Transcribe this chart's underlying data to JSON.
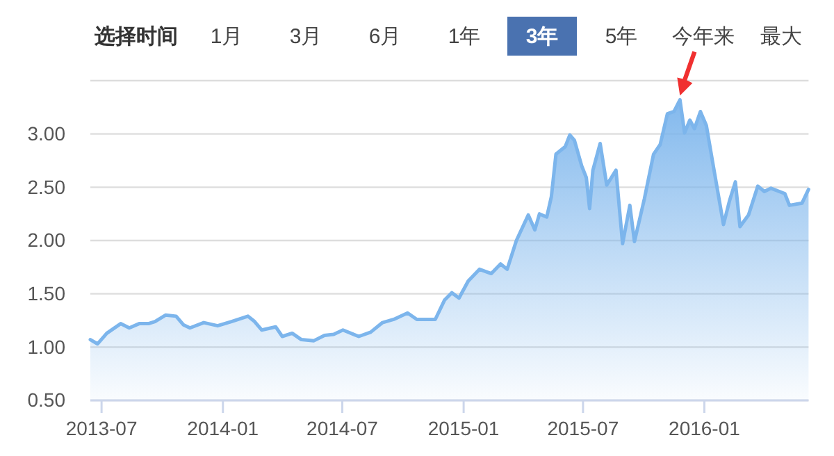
{
  "chart_data": {
    "type": "area",
    "annotations": [
      "选择时间",
      "1月",
      "3月",
      "6月",
      "1年",
      "3年",
      "5年",
      "今年来",
      "最大"
    ],
    "x": [
      "2013-06-14",
      "2013-06-25",
      "2013-07-09",
      "2013-07-30",
      "2013-08-12",
      "2013-08-27",
      "2013-09-10",
      "2013-09-20",
      "2013-10-06",
      "2013-10-22",
      "2013-11-02",
      "2013-11-12",
      "2013-12-03",
      "2013-12-24",
      "2014-01-14",
      "2014-02-08",
      "2014-02-18",
      "2014-03-01",
      "2014-03-22",
      "2014-04-01",
      "2014-04-16",
      "2014-04-30",
      "2014-05-19",
      "2014-06-04",
      "2014-06-18",
      "2014-07-02",
      "2014-07-26",
      "2014-08-13",
      "2014-08-31",
      "2014-09-17",
      "2014-10-08",
      "2014-10-22",
      "2014-11-19",
      "2014-12-03",
      "2014-12-14",
      "2014-12-25",
      "2015-01-08",
      "2015-01-25",
      "2015-02-12",
      "2015-02-26",
      "2015-03-08",
      "2015-03-22",
      "2015-04-09",
      "2015-04-19",
      "2015-04-26",
      "2015-05-07",
      "2015-05-14",
      "2015-05-21",
      "2015-06-04",
      "2015-06-11",
      "2015-06-18",
      "2015-06-29",
      "2015-07-06",
      "2015-07-11",
      "2015-07-16",
      "2015-07-27",
      "2015-08-06",
      "2015-08-20",
      "2015-08-30",
      "2015-09-10",
      "2015-09-17",
      "2015-10-02",
      "2015-10-16",
      "2015-10-26",
      "2015-11-06",
      "2015-11-16",
      "2015-11-25",
      "2015-12-02",
      "2015-12-10",
      "2015-12-17",
      "2015-12-26",
      "2016-01-04",
      "2016-01-14",
      "2016-01-30",
      "2016-02-08",
      "2016-02-17",
      "2016-02-24",
      "2016-03-08",
      "2016-03-22",
      "2016-04-01",
      "2016-04-11",
      "2016-05-02",
      "2016-05-09",
      "2016-05-28",
      "2016-06-07"
    ],
    "series": [
      {
        "color": "#7cb5ec",
        "values": [
          1.07,
          1.03,
          1.13,
          1.22,
          1.18,
          1.22,
          1.22,
          1.24,
          1.3,
          1.29,
          1.21,
          1.18,
          1.23,
          1.2,
          1.24,
          1.29,
          1.24,
          1.16,
          1.19,
          1.1,
          1.13,
          1.07,
          1.06,
          1.11,
          1.12,
          1.16,
          1.1,
          1.14,
          1.23,
          1.26,
          1.32,
          1.26,
          1.26,
          1.44,
          1.51,
          1.46,
          1.62,
          1.73,
          1.69,
          1.78,
          1.73,
          2.0,
          2.24,
          2.1,
          2.25,
          2.22,
          2.41,
          2.81,
          2.88,
          2.99,
          2.94,
          2.7,
          2.59,
          2.3,
          2.66,
          2.91,
          2.52,
          2.66,
          1.97,
          2.33,
          1.99,
          2.39,
          2.81,
          2.9,
          3.19,
          3.21,
          3.32,
          3.01,
          3.13,
          3.05,
          3.21,
          3.08,
          2.72,
          2.15,
          2.37,
          2.55,
          2.13,
          2.24,
          2.51,
          2.46,
          2.49,
          2.44,
          2.33,
          2.35,
          2.48
        ]
      }
    ],
    "xlim": [
      "2013-06-14",
      "2016-06-07"
    ],
    "xticks": [
      {
        "value": "2013-07-01",
        "label": "2013-07"
      },
      {
        "value": "2014-01-01",
        "label": "2014-01"
      },
      {
        "value": "2014-07-01",
        "label": "2014-07"
      },
      {
        "value": "2015-01-01",
        "label": "2015-01"
      },
      {
        "value": "2015-07-01",
        "label": "2015-07"
      },
      {
        "value": "2016-01-01",
        "label": "2016-01"
      }
    ],
    "ylim": [
      0.5,
      3.5
    ],
    "yticks": [
      {
        "value": 0.5,
        "label": "0.50"
      },
      {
        "value": 1,
        "label": "1.00"
      },
      {
        "value": 1.5,
        "label": "1.50"
      },
      {
        "value": 2,
        "label": "2.00"
      },
      {
        "value": 2.5,
        "label": "2.50"
      },
      {
        "value": 3,
        "label": "3.00"
      },
      {
        "value": 3.5,
        "label": null
      }
    ],
    "grid": "y",
    "marker": "none",
    "line_style": "solid"
  }
}
